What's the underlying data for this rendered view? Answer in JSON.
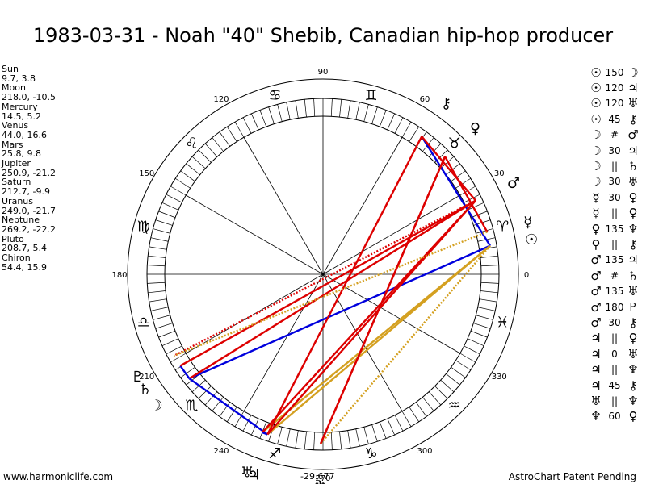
{
  "title": "1983-03-31 - Noah \"40\" Shebib, Canadian hip-hop producer",
  "planets": [
    {
      "name": "Sun",
      "values": "9.7, 3.8"
    },
    {
      "name": "Moon",
      "values": "218.0, -10.5"
    },
    {
      "name": "Mercury",
      "values": "14.5, 5.2"
    },
    {
      "name": "Venus",
      "values": "44.0, 16.6"
    },
    {
      "name": "Mars",
      "values": "25.8, 9.8"
    },
    {
      "name": "Jupiter",
      "values": "250.9, -21.2"
    },
    {
      "name": "Saturn",
      "values": "212.7, -9.9"
    },
    {
      "name": "Uranus",
      "values": "249.0, -21.7"
    },
    {
      "name": "Neptune",
      "values": "269.2, -22.2"
    },
    {
      "name": "Pluto",
      "values": "208.7, 5.4"
    },
    {
      "name": "Chiron",
      "values": "54.4, 15.9"
    }
  ],
  "aspects": [
    {
      "p1": "☉",
      "sym": "150",
      "p2": "☽"
    },
    {
      "p1": "☉",
      "sym": "120",
      "p2": "♃"
    },
    {
      "p1": "☉",
      "sym": "120",
      "p2": "♅"
    },
    {
      "p1": "☉",
      "sym": "45",
      "p2": "⚷"
    },
    {
      "p1": "☽",
      "sym": "#",
      "p2": "♂"
    },
    {
      "p1": "☽",
      "sym": "30",
      "p2": "♃"
    },
    {
      "p1": "☽",
      "sym": "||",
      "p2": "♄"
    },
    {
      "p1": "☽",
      "sym": "30",
      "p2": "♅"
    },
    {
      "p1": "☿",
      "sym": "30",
      "p2": "♀"
    },
    {
      "p1": "☿",
      "sym": "||",
      "p2": "♀"
    },
    {
      "p1": "♀",
      "sym": "135",
      "p2": "♆"
    },
    {
      "p1": "♀",
      "sym": "||",
      "p2": "⚷"
    },
    {
      "p1": "♂",
      "sym": "135",
      "p2": "♃"
    },
    {
      "p1": "♂",
      "sym": "#",
      "p2": "♄"
    },
    {
      "p1": "♂",
      "sym": "135",
      "p2": "♅"
    },
    {
      "p1": "♂",
      "sym": "180",
      "p2": "♇"
    },
    {
      "p1": "♂",
      "sym": "30",
      "p2": "⚷"
    },
    {
      "p1": "♃",
      "sym": "||",
      "p2": "♀"
    },
    {
      "p1": "♃",
      "sym": "0",
      "p2": "♅"
    },
    {
      "p1": "♃",
      "sym": "||",
      "p2": "♆"
    },
    {
      "p1": "♃",
      "sym": "45",
      "p2": "⚷"
    },
    {
      "p1": "♅",
      "sym": "||",
      "p2": "♆"
    },
    {
      "p1": "♆",
      "sym": "60",
      "p2": "♀"
    }
  ],
  "wheel": {
    "degree_labels": [
      "0",
      "30",
      "60",
      "90",
      "120",
      "150",
      "180",
      "210",
      "240",
      "270",
      "300",
      "330"
    ],
    "signs": [
      "♈",
      "♉",
      "♊",
      "♋",
      "♌",
      "♍",
      "♎",
      "♏",
      "♐",
      "♑",
      "♒",
      "♓"
    ],
    "bodies": [
      {
        "glyph": "☉",
        "lon": 9.7
      },
      {
        "glyph": "☽",
        "lon": 218.0
      },
      {
        "glyph": "☿",
        "lon": 14.5
      },
      {
        "glyph": "♀",
        "lon": 44.0
      },
      {
        "glyph": "♂",
        "lon": 25.8
      },
      {
        "glyph": "♃",
        "lon": 250.9
      },
      {
        "glyph": "♄",
        "lon": 212.7
      },
      {
        "glyph": "♅",
        "lon": 249.0
      },
      {
        "glyph": "♆",
        "lon": 269.2
      },
      {
        "glyph": "♇",
        "lon": 208.7
      },
      {
        "glyph": "⚷",
        "lon": 54.4
      }
    ],
    "aspect_lines": [
      {
        "a": 9.7,
        "b": 218.0,
        "color": "#0000dd",
        "style": "solid"
      },
      {
        "a": 9.7,
        "b": 250.9,
        "color": "#d4a020",
        "style": "solid"
      },
      {
        "a": 9.7,
        "b": 249.0,
        "color": "#d4a020",
        "style": "solid"
      },
      {
        "a": 9.7,
        "b": 54.4,
        "color": "#0000dd",
        "style": "solid"
      },
      {
        "a": 218.0,
        "b": 25.8,
        "color": "#dd0000",
        "style": "solid"
      },
      {
        "a": 218.0,
        "b": 250.9,
        "color": "#0000dd",
        "style": "solid"
      },
      {
        "a": 218.0,
        "b": 212.7,
        "color": "#0000dd",
        "style": "solid"
      },
      {
        "a": 14.5,
        "b": 44.0,
        "color": "#dd0000",
        "style": "solid"
      },
      {
        "a": 44.0,
        "b": 269.2,
        "color": "#dd0000",
        "style": "solid"
      },
      {
        "a": 25.8,
        "b": 250.9,
        "color": "#dd0000",
        "style": "solid"
      },
      {
        "a": 25.8,
        "b": 212.7,
        "color": "#dd0000",
        "style": "solid"
      },
      {
        "a": 25.8,
        "b": 249.0,
        "color": "#dd0000",
        "style": "solid"
      },
      {
        "a": 25.8,
        "b": 208.7,
        "color": "#dd0000",
        "style": "dotted"
      },
      {
        "a": 25.8,
        "b": 54.4,
        "color": "#dd0000",
        "style": "solid"
      },
      {
        "a": 250.9,
        "b": 249.0,
        "color": "#0000dd",
        "style": "solid"
      },
      {
        "a": 250.9,
        "b": 54.4,
        "color": "#dd0000",
        "style": "solid"
      },
      {
        "a": 14.5,
        "b": 208.7,
        "color": "#d4a020",
        "style": "dotted"
      },
      {
        "a": 9.7,
        "b": 269.2,
        "color": "#d4a020",
        "style": "dotted"
      },
      {
        "a": 269.2,
        "b": 44.0,
        "color": "#dd0000",
        "style": "solid"
      }
    ]
  },
  "footer": {
    "site": "www.harmoniclife.com",
    "center": "-29.677",
    "patent": "AstroChart Patent Pending"
  }
}
